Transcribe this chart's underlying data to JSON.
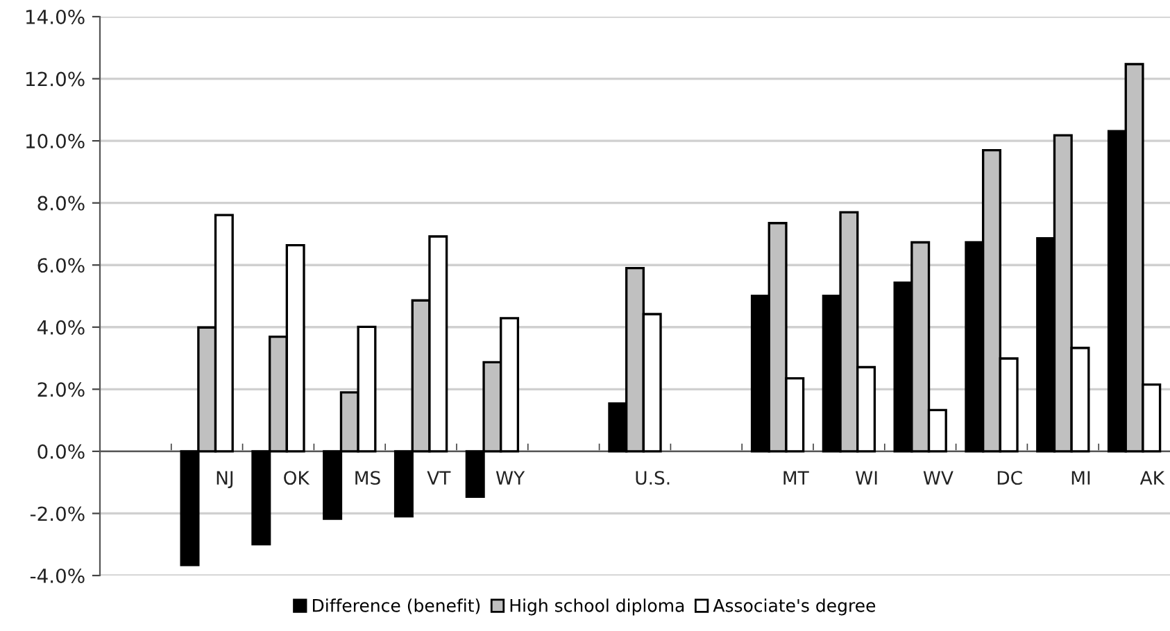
{
  "chart_data": {
    "type": "bar",
    "categories": [
      null,
      "NJ",
      "OK",
      "MS",
      "VT",
      "WY",
      null,
      "U.S.",
      null,
      "MT",
      "WI",
      "WV",
      "DC",
      "MI",
      "AK"
    ],
    "series": [
      {
        "name": "Difference (benefit)",
        "color": "#000000",
        "values": [
          null,
          -3.66,
          -2.99,
          -2.17,
          -2.09,
          -1.46,
          null,
          1.54,
          null,
          5.01,
          5.01,
          5.43,
          6.73,
          6.86,
          10.31
        ]
      },
      {
        "name": "High school diploma",
        "color": "#c0c0c0",
        "values": [
          null,
          3.99,
          3.69,
          1.9,
          4.86,
          2.87,
          null,
          5.9,
          null,
          7.35,
          7.7,
          6.73,
          9.7,
          10.18,
          12.47
        ]
      },
      {
        "name": "Associate's degree",
        "color": "#ffffff",
        "values": [
          null,
          7.61,
          6.64,
          4.01,
          6.92,
          4.29,
          null,
          4.42,
          null,
          2.35,
          2.71,
          1.33,
          2.99,
          3.33,
          2.15
        ]
      }
    ],
    "ylim": [
      -4,
      14
    ],
    "yticks": [
      {
        "value": -4,
        "label": "-4.0%"
      },
      {
        "value": -2,
        "label": "-2.0%"
      },
      {
        "value": 0,
        "label": "0.0%"
      },
      {
        "value": 2,
        "label": "2.0%"
      },
      {
        "value": 4,
        "label": "4.0%"
      },
      {
        "value": 6,
        "label": "6.0%"
      },
      {
        "value": 8,
        "label": "8.0%"
      },
      {
        "value": 10,
        "label": "10.0%"
      },
      {
        "value": 12,
        "label": "12.0%"
      },
      {
        "value": 14,
        "label": "14.0%"
      }
    ],
    "grid": "y",
    "legend": "bottom"
  }
}
